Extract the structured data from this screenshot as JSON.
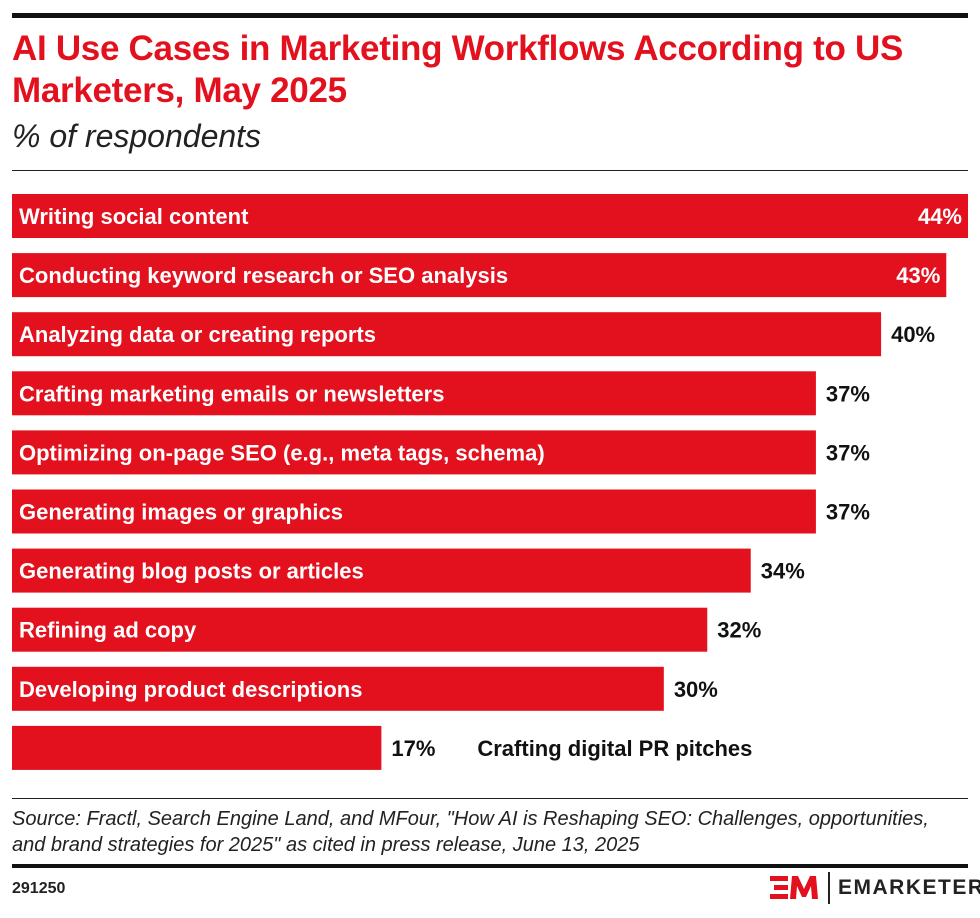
{
  "chart_data": {
    "type": "bar",
    "orientation": "horizontal",
    "title": "AI Use Cases in Marketing Workflows According to US Marketers, May 2025",
    "subtitle": "% of respondents",
    "categories": [
      "Writing social content",
      "Conducting keyword research or SEO analysis",
      "Analyzing data or creating reports",
      "Crafting marketing emails or newsletters",
      "Optimizing on-page SEO (e.g., meta tags, schema)",
      "Generating images or graphics",
      "Generating blog posts or articles",
      "Refining ad copy",
      "Developing product descriptions",
      "Crafting digital PR pitches"
    ],
    "values": [
      44,
      43,
      40,
      37,
      37,
      37,
      34,
      32,
      30,
      17
    ],
    "value_labels": [
      "44%",
      "43%",
      "40%",
      "37%",
      "37%",
      "37%",
      "34%",
      "32%",
      "30%",
      "17%"
    ],
    "xlim": [
      0,
      44
    ],
    "bar_color": "#e3101e",
    "grid": false
  },
  "footer": {
    "source": "Source: Fractl, Search Engine Land, and MFour, \"How AI is Reshaping SEO: Challenges, opportunities, and brand strategies for 2025\" as cited in press release, June 13, 2025",
    "chart_id": "291250",
    "brand": "EMARKETER",
    "brand_mark": "EM"
  }
}
